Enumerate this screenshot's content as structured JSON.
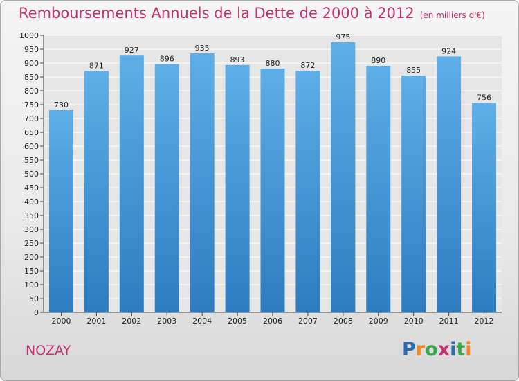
{
  "title": "Remboursements Annuels de la Dette de 2000 à 2012",
  "subtitle": "(en milliers d'€)",
  "city": "NOZAY",
  "logo": {
    "letters": [
      "P",
      "r",
      "o",
      "x",
      "i",
      "t",
      "i"
    ],
    "colors": [
      "#2b6cb0",
      "#f08a1c",
      "#3aa84a",
      "#c0336e",
      "#2b6cb0",
      "#3aa84a",
      "#f08a1c"
    ]
  },
  "colors": {
    "bar_light": "#5eaee8",
    "bar_dark": "#2d7cc0",
    "accent": "#c0336e",
    "grid": "#ffffff"
  },
  "chart_data": {
    "type": "bar",
    "categories": [
      "2000",
      "2001",
      "2002",
      "2003",
      "2004",
      "2005",
      "2006",
      "2007",
      "2008",
      "2009",
      "2010",
      "2011",
      "2012"
    ],
    "values": [
      730,
      871,
      927,
      896,
      935,
      893,
      880,
      872,
      975,
      890,
      855,
      924,
      756
    ],
    "title": "Remboursements Annuels de la Dette de 2000 à 2012",
    "subtitle": "(en milliers d'€)",
    "ylim": [
      0,
      1000
    ],
    "yticks": [
      0,
      50,
      100,
      150,
      200,
      250,
      300,
      350,
      400,
      450,
      500,
      550,
      600,
      650,
      700,
      750,
      800,
      850,
      900,
      950,
      1000
    ],
    "grid": true,
    "data_labels": true
  }
}
